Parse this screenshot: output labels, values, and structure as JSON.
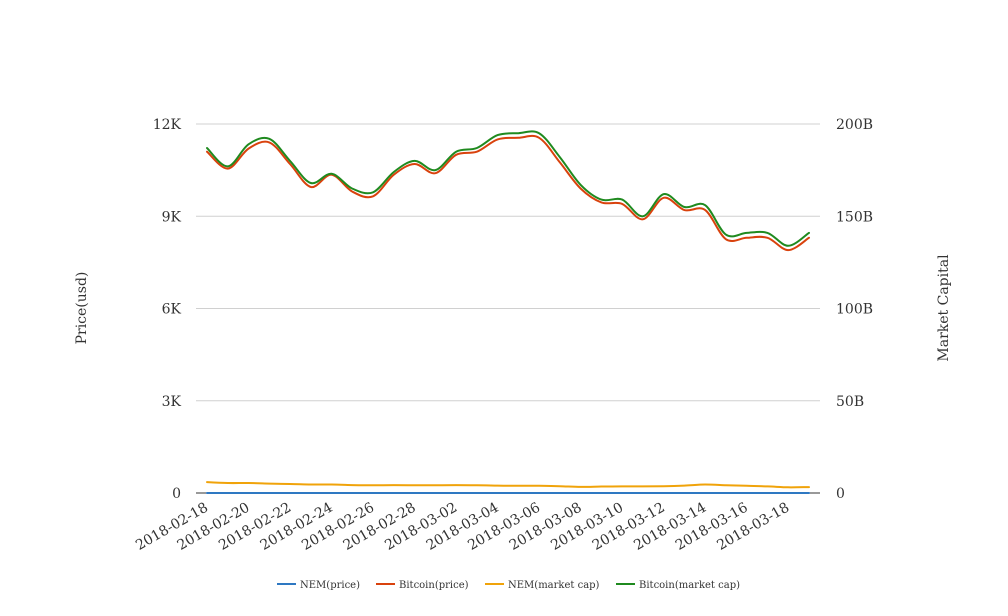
{
  "chart_data": {
    "type": "line",
    "title": "",
    "x": [
      "2018-02-18",
      "2018-02-19",
      "2018-02-20",
      "2018-02-21",
      "2018-02-22",
      "2018-02-23",
      "2018-02-24",
      "2018-02-25",
      "2018-02-26",
      "2018-02-27",
      "2018-02-28",
      "2018-03-01",
      "2018-03-02",
      "2018-03-03",
      "2018-03-04",
      "2018-03-05",
      "2018-03-06",
      "2018-03-07",
      "2018-03-08",
      "2018-03-09",
      "2018-03-10",
      "2018-03-11",
      "2018-03-12",
      "2018-03-13",
      "2018-03-14",
      "2018-03-15",
      "2018-03-16",
      "2018-03-17",
      "2018-03-18",
      "2018-03-19"
    ],
    "x_tick_labels": [
      "2018-02-18",
      "2018-02-20",
      "2018-02-22",
      "2018-02-24",
      "2018-02-26",
      "2018-02-28",
      "2018-03-02",
      "2018-03-04",
      "2018-03-06",
      "2018-03-08",
      "2018-03-10",
      "2018-03-12",
      "2018-03-14",
      "2018-03-16",
      "2018-03-18"
    ],
    "y_left": {
      "label": "Price(usd)",
      "ylim": [
        0,
        12000
      ],
      "ticks": [
        0,
        3000,
        6000,
        9000,
        12000
      ],
      "tick_labels": [
        "0",
        "3K",
        "6K",
        "9K",
        "12K"
      ]
    },
    "y_right": {
      "label": "Market Capital",
      "ylim": [
        0,
        200000000000
      ],
      "ticks": [
        0,
        50000000000,
        100000000000,
        150000000000,
        200000000000
      ],
      "tick_labels": [
        "0",
        "50B",
        "100B",
        "150B",
        "200B"
      ]
    },
    "grid": true,
    "legend_position": "bottom",
    "series": [
      {
        "name": "NEM(price)",
        "axis": "left",
        "color": "#2e78c2",
        "values": [
          0.53,
          0.55,
          0.54,
          0.52,
          0.5,
          0.47,
          0.46,
          0.44,
          0.43,
          0.43,
          0.42,
          0.42,
          0.43,
          0.42,
          0.4,
          0.39,
          0.39,
          0.38,
          0.34,
          0.35,
          0.36,
          0.36,
          0.37,
          0.39,
          0.43,
          0.4,
          0.38,
          0.35,
          0.3,
          0.31
        ]
      },
      {
        "name": "Bitcoin(price)",
        "axis": "left",
        "color": "#d9420d",
        "values": [
          11100,
          10550,
          11200,
          11400,
          10700,
          9950,
          10350,
          9800,
          9650,
          10350,
          10700,
          10400,
          11000,
          11100,
          11500,
          11550,
          11550,
          10750,
          9900,
          9450,
          9400,
          8900,
          9600,
          9200,
          9200,
          8250,
          8300,
          8300,
          7900,
          8300
        ]
      },
      {
        "name": "NEM(market cap)",
        "axis": "right",
        "color": "#f0a30a",
        "values": [
          5900000000,
          5400000000,
          5400000000,
          5100000000,
          4900000000,
          4600000000,
          4600000000,
          4300000000,
          4200000000,
          4300000000,
          4200000000,
          4200000000,
          4300000000,
          4200000000,
          4000000000,
          3900000000,
          3900000000,
          3700000000,
          3300000000,
          3500000000,
          3600000000,
          3600000000,
          3700000000,
          4000000000,
          4600000000,
          4200000000,
          3900000000,
          3600000000,
          3100000000,
          3200000000
        ]
      },
      {
        "name": "Bitcoin(market cap)",
        "axis": "right",
        "color": "#1f8a1f",
        "values": [
          187000000000,
          177000000000,
          189000000000,
          192000000000,
          180000000000,
          168000000000,
          173000000000,
          165000000000,
          163000000000,
          174000000000,
          180000000000,
          175000000000,
          185000000000,
          187000000000,
          194000000000,
          195000000000,
          195000000000,
          182000000000,
          167000000000,
          159000000000,
          159000000000,
          150000000000,
          162000000000,
          155000000000,
          156000000000,
          140000000000,
          141000000000,
          141000000000,
          134000000000,
          141000000000
        ]
      }
    ]
  }
}
